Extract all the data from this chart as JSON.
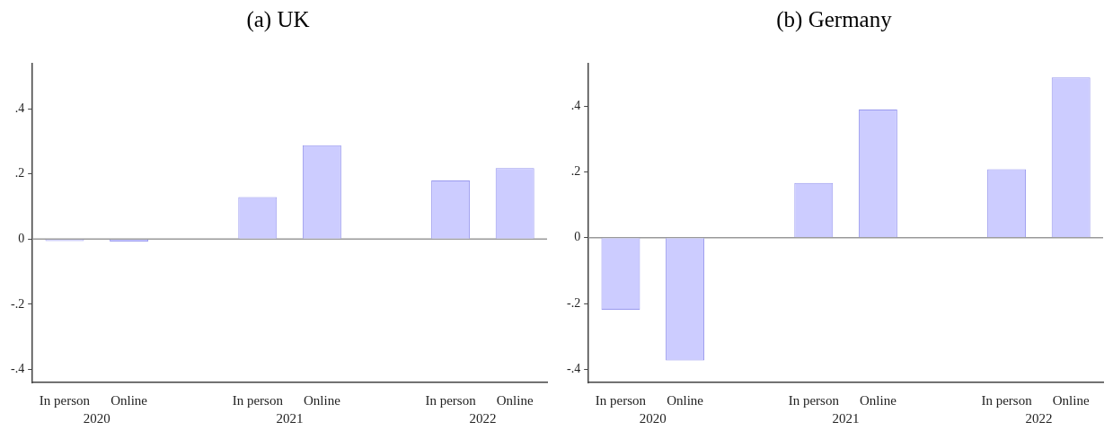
{
  "chart_data": [
    {
      "type": "bar",
      "title": "(a) UK",
      "categories": [
        "In person",
        "Online",
        null,
        "In person",
        "Online",
        null,
        "In person",
        "Online"
      ],
      "series": [
        {
          "color": "#ccccff",
          "values": [
            -0.006,
            -0.007,
            null,
            0.129,
            0.288,
            null,
            0.18,
            0.218
          ]
        }
      ],
      "ylim": [
        -0.44,
        0.54
      ],
      "yticks": [
        {
          "value": -0.4,
          "label": "-.4"
        },
        {
          "value": -0.2,
          "label": "-.2"
        },
        0,
        {
          "value": 0.2,
          "label": ".2"
        },
        {
          "value": 0.4,
          "label": ".4"
        }
      ],
      "ref_lines": [
        {
          "axis": "y",
          "value": 0,
          "color": "#999999"
        }
      ],
      "annotations": [
        "2020",
        "2021",
        "2022"
      ],
      "grid": false,
      "legend": false
    },
    {
      "type": "bar",
      "title": "(b) Germany",
      "categories": [
        "In person",
        "Online",
        null,
        "In person",
        "Online",
        null,
        "In person",
        "Online"
      ],
      "series": [
        {
          "color": "#ccccff",
          "values": [
            -0.219,
            -0.373,
            null,
            0.166,
            0.389,
            null,
            0.208,
            0.487
          ]
        }
      ],
      "ylim": [
        -0.44,
        0.53
      ],
      "yticks": [
        {
          "value": -0.4,
          "label": "-.4"
        },
        {
          "value": -0.2,
          "label": "-.2"
        },
        0,
        {
          "value": 0.2,
          "label": ".2"
        },
        {
          "value": 0.4,
          "label": ".4"
        }
      ],
      "ref_lines": [
        {
          "axis": "y",
          "value": 0,
          "color": "#999999"
        }
      ],
      "annotations": [
        "2020",
        "2021",
        "2022"
      ],
      "grid": false,
      "legend": false
    }
  ]
}
